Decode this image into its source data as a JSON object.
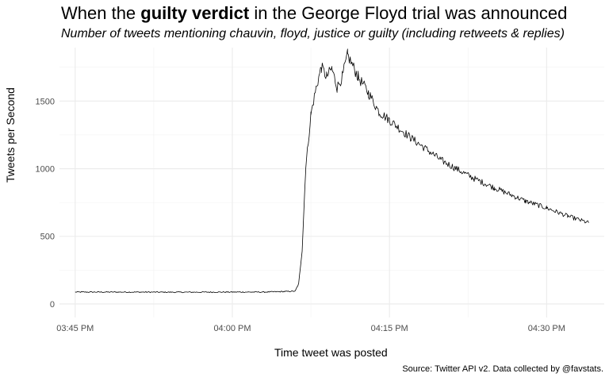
{
  "chart_data": {
    "type": "line",
    "title_parts": [
      "When the ",
      "guilty verdict",
      " in the George Floyd trial was announced"
    ],
    "subtitle": "Number of tweets mentioning chauvin, floyd, justice or guilty (including retweets & replies)",
    "xlabel": "Time tweet was posted",
    "ylabel": "Tweets per Second",
    "caption": "Source: Twitter API v2. Data collected by @favstats.",
    "x_ticks": [
      {
        "minute": 45,
        "label": "03:45 PM"
      },
      {
        "minute": 60,
        "label": "04:00 PM"
      },
      {
        "minute": 75,
        "label": "04:15 PM"
      },
      {
        "minute": 90,
        "label": "04:30 PM"
      }
    ],
    "y_ticks": [
      0,
      500,
      1000,
      1500
    ],
    "xlim": [
      "03:45 PM",
      "04:34 PM"
    ],
    "ylim": [
      0,
      1900
    ],
    "grid": true,
    "series": [
      {
        "color": "#000000",
        "points": [
          [
            "03:45 PM",
            88
          ],
          [
            "03:50 PM",
            88
          ],
          [
            "03:55 PM",
            87
          ],
          [
            "04:00 PM",
            88
          ],
          [
            "04:03 PM",
            88
          ],
          [
            "04:05 PM",
            92
          ],
          [
            "04:06 PM",
            95
          ],
          [
            "04:06 PM",
            150
          ],
          [
            "04:06 PM",
            400
          ],
          [
            "04:07 PM",
            1000
          ],
          [
            "04:07 PM",
            1400
          ],
          [
            "04:08 PM",
            1600
          ],
          [
            "04:08 PM",
            1750
          ],
          [
            "04:09 PM",
            1680
          ],
          [
            "04:09 PM",
            1740
          ],
          [
            "04:10 PM",
            1600
          ],
          [
            "04:10 PM",
            1680
          ],
          [
            "04:11 PM",
            1840
          ],
          [
            "04:12 PM",
            1680
          ],
          [
            "04:13 PM",
            1560
          ],
          [
            "04:14 PM",
            1420
          ],
          [
            "04:15 PM",
            1360
          ],
          [
            "04:17 PM",
            1230
          ],
          [
            "04:20 PM",
            1060
          ],
          [
            "04:23 PM",
            930
          ],
          [
            "04:25 PM",
            860
          ],
          [
            "04:28 PM",
            760
          ],
          [
            "04:30 PM",
            710
          ],
          [
            "04:32 PM",
            650
          ],
          [
            "04:34 PM",
            600
          ]
        ]
      }
    ]
  }
}
